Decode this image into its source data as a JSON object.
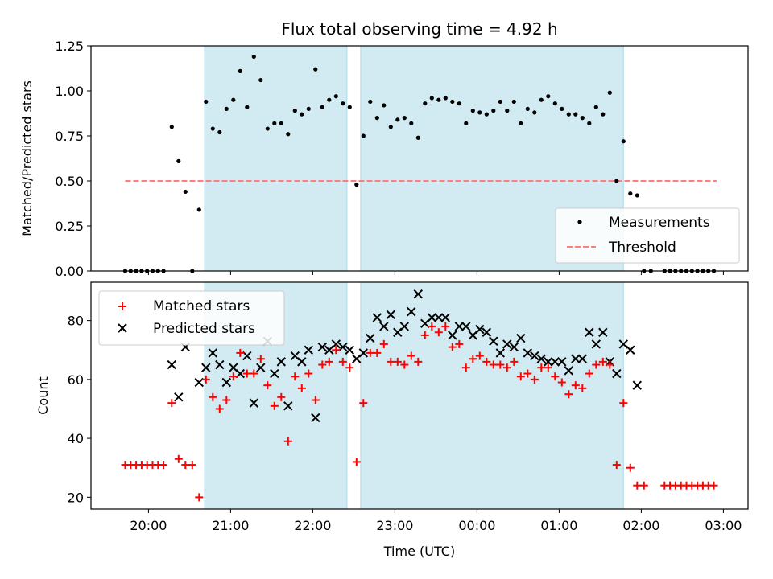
{
  "figure": {
    "title": "Flux total observing time = 4.92 h",
    "xlabel": "Time (UTC)",
    "colors": {
      "band": "#add8e6",
      "measurement": "#000000",
      "threshold": "#ff7f7f",
      "matched": "#ff0000",
      "predicted": "#000000"
    }
  },
  "chart_data": [
    {
      "type": "scatter",
      "ylabel": "Matched/Predicted stars",
      "ylim": [
        0,
        1.25
      ],
      "yticks": [
        "0.00",
        "0.25",
        "0.50",
        "0.75",
        "1.00",
        "1.25"
      ],
      "xlim_hours": [
        19.3,
        27.3
      ],
      "legend_position": "lower-right",
      "shaded_intervals": [
        [
          "20:41",
          "22:25"
        ],
        [
          "22:35",
          "01:47"
        ]
      ],
      "threshold": {
        "name": "Threshold",
        "value": 0.5,
        "x_range": [
          "19:43",
          "02:55"
        ]
      },
      "series": [
        {
          "name": "Measurements",
          "points": [
            [
              "19:43",
              0
            ],
            [
              "19:47",
              0
            ],
            [
              "19:51",
              0
            ],
            [
              "19:55",
              0
            ],
            [
              "19:59",
              0
            ],
            [
              "20:03",
              0
            ],
            [
              "20:07",
              0
            ],
            [
              "20:11",
              0
            ],
            [
              "20:17",
              0.8
            ],
            [
              "20:22",
              0.61
            ],
            [
              "20:27",
              0.44
            ],
            [
              "20:32",
              0
            ],
            [
              "20:37",
              0.34
            ],
            [
              "20:42",
              0.94
            ],
            [
              "20:47",
              0.79
            ],
            [
              "20:52",
              0.77
            ],
            [
              "20:57",
              0.9
            ],
            [
              "21:02",
              0.95
            ],
            [
              "21:07",
              1.11
            ],
            [
              "21:12",
              0.91
            ],
            [
              "21:17",
              1.19
            ],
            [
              "21:22",
              1.06
            ],
            [
              "21:27",
              0.79
            ],
            [
              "21:32",
              0.82
            ],
            [
              "21:37",
              0.82
            ],
            [
              "21:42",
              0.76
            ],
            [
              "21:47",
              0.89
            ],
            [
              "21:52",
              0.87
            ],
            [
              "21:57",
              0.9
            ],
            [
              "22:02",
              1.12
            ],
            [
              "22:07",
              0.91
            ],
            [
              "22:12",
              0.95
            ],
            [
              "22:17",
              0.97
            ],
            [
              "22:22",
              0.93
            ],
            [
              "22:27",
              0.91
            ],
            [
              "22:32",
              0.48
            ],
            [
              "22:37",
              0.75
            ],
            [
              "22:42",
              0.94
            ],
            [
              "22:47",
              0.85
            ],
            [
              "22:52",
              0.92
            ],
            [
              "22:57",
              0.8
            ],
            [
              "23:02",
              0.84
            ],
            [
              "23:07",
              0.85
            ],
            [
              "23:12",
              0.82
            ],
            [
              "23:17",
              0.74
            ],
            [
              "23:22",
              0.93
            ],
            [
              "23:27",
              0.96
            ],
            [
              "23:32",
              0.95
            ],
            [
              "23:37",
              0.96
            ],
            [
              "23:42",
              0.94
            ],
            [
              "23:47",
              0.93
            ],
            [
              "23:52",
              0.82
            ],
            [
              "23:57",
              0.89
            ],
            [
              "00:02",
              0.88
            ],
            [
              "00:07",
              0.87
            ],
            [
              "00:12",
              0.89
            ],
            [
              "00:17",
              0.94
            ],
            [
              "00:22",
              0.89
            ],
            [
              "00:27",
              0.94
            ],
            [
              "00:32",
              0.82
            ],
            [
              "00:37",
              0.9
            ],
            [
              "00:42",
              0.88
            ],
            [
              "00:47",
              0.95
            ],
            [
              "00:52",
              0.97
            ],
            [
              "00:57",
              0.93
            ],
            [
              "01:02",
              0.9
            ],
            [
              "01:07",
              0.87
            ],
            [
              "01:12",
              0.87
            ],
            [
              "01:17",
              0.85
            ],
            [
              "01:22",
              0.82
            ],
            [
              "01:27",
              0.91
            ],
            [
              "01:32",
              0.87
            ],
            [
              "01:37",
              0.99
            ],
            [
              "01:42",
              0.5
            ],
            [
              "01:47",
              0.72
            ],
            [
              "01:52",
              0.43
            ],
            [
              "01:57",
              0.42
            ],
            [
              "02:02",
              0
            ],
            [
              "02:07",
              0
            ],
            [
              "02:17",
              0
            ],
            [
              "02:21",
              0
            ],
            [
              "02:25",
              0
            ],
            [
              "02:29",
              0
            ],
            [
              "02:33",
              0
            ],
            [
              "02:37",
              0
            ],
            [
              "02:41",
              0
            ],
            [
              "02:45",
              0
            ],
            [
              "02:49",
              0
            ],
            [
              "02:53",
              0
            ]
          ]
        }
      ]
    },
    {
      "type": "scatter",
      "ylabel": "Count",
      "ylim": [
        16,
        93
      ],
      "yticks": [
        "20",
        "40",
        "60",
        "80"
      ],
      "xlim_hours": [
        19.3,
        27.3
      ],
      "xticks": [
        "20:00",
        "21:00",
        "22:00",
        "23:00",
        "00:00",
        "01:00",
        "02:00",
        "03:00"
      ],
      "legend_position": "upper-left",
      "shaded_intervals": [
        [
          "20:41",
          "22:25"
        ],
        [
          "22:35",
          "01:47"
        ]
      ],
      "series": [
        {
          "name": "Matched stars",
          "marker": "plus",
          "points": [
            [
              "19:43",
              31
            ],
            [
              "19:47",
              31
            ],
            [
              "19:51",
              31
            ],
            [
              "19:55",
              31
            ],
            [
              "19:59",
              31
            ],
            [
              "20:03",
              31
            ],
            [
              "20:07",
              31
            ],
            [
              "20:11",
              31
            ],
            [
              "20:17",
              52
            ],
            [
              "20:22",
              33
            ],
            [
              "20:27",
              31
            ],
            [
              "20:32",
              31
            ],
            [
              "20:37",
              20
            ],
            [
              "20:42",
              60
            ],
            [
              "20:47",
              54
            ],
            [
              "20:52",
              50
            ],
            [
              "20:57",
              53
            ],
            [
              "21:02",
              61
            ],
            [
              "21:07",
              69
            ],
            [
              "21:12",
              62
            ],
            [
              "21:17",
              62
            ],
            [
              "21:22",
              67
            ],
            [
              "21:27",
              58
            ],
            [
              "21:32",
              51
            ],
            [
              "21:37",
              54
            ],
            [
              "21:42",
              39
            ],
            [
              "21:47",
              61
            ],
            [
              "21:52",
              57
            ],
            [
              "21:57",
              62
            ],
            [
              "22:02",
              53
            ],
            [
              "22:07",
              65
            ],
            [
              "22:12",
              66
            ],
            [
              "22:17",
              70
            ],
            [
              "22:22",
              66
            ],
            [
              "22:27",
              64
            ],
            [
              "22:32",
              32
            ],
            [
              "22:37",
              52
            ],
            [
              "22:42",
              69
            ],
            [
              "22:47",
              69
            ],
            [
              "22:52",
              72
            ],
            [
              "22:57",
              66
            ],
            [
              "23:02",
              66
            ],
            [
              "23:07",
              65
            ],
            [
              "23:12",
              68
            ],
            [
              "23:17",
              66
            ],
            [
              "23:22",
              75
            ],
            [
              "23:27",
              78
            ],
            [
              "23:32",
              76
            ],
            [
              "23:37",
              78
            ],
            [
              "23:42",
              71
            ],
            [
              "23:47",
              72
            ],
            [
              "23:52",
              64
            ],
            [
              "23:57",
              67
            ],
            [
              "00:02",
              68
            ],
            [
              "00:07",
              66
            ],
            [
              "00:12",
              65
            ],
            [
              "00:17",
              65
            ],
            [
              "00:22",
              64
            ],
            [
              "00:27",
              66
            ],
            [
              "00:32",
              61
            ],
            [
              "00:37",
              62
            ],
            [
              "00:42",
              60
            ],
            [
              "00:47",
              64
            ],
            [
              "00:52",
              64
            ],
            [
              "00:57",
              61
            ],
            [
              "01:02",
              59
            ],
            [
              "01:07",
              55
            ],
            [
              "01:12",
              58
            ],
            [
              "01:17",
              57
            ],
            [
              "01:22",
              62
            ],
            [
              "01:27",
              65
            ],
            [
              "01:32",
              66
            ],
            [
              "01:37",
              65
            ],
            [
              "01:42",
              31
            ],
            [
              "01:47",
              52
            ],
            [
              "01:52",
              30
            ],
            [
              "01:57",
              24
            ],
            [
              "02:02",
              24
            ],
            [
              "02:17",
              24
            ],
            [
              "02:21",
              24
            ],
            [
              "02:25",
              24
            ],
            [
              "02:29",
              24
            ],
            [
              "02:33",
              24
            ],
            [
              "02:37",
              24
            ],
            [
              "02:41",
              24
            ],
            [
              "02:45",
              24
            ],
            [
              "02:49",
              24
            ],
            [
              "02:53",
              24
            ]
          ]
        },
        {
          "name": "Predicted stars",
          "marker": "x",
          "points": [
            [
              "20:17",
              65
            ],
            [
              "20:22",
              54
            ],
            [
              "20:27",
              71
            ],
            [
              "20:37",
              59
            ],
            [
              "20:42",
              64
            ],
            [
              "20:47",
              69
            ],
            [
              "20:52",
              65
            ],
            [
              "20:57",
              59
            ],
            [
              "21:02",
              64
            ],
            [
              "21:07",
              62
            ],
            [
              "21:12",
              68
            ],
            [
              "21:17",
              52
            ],
            [
              "21:22",
              64
            ],
            [
              "21:27",
              73
            ],
            [
              "21:32",
              62
            ],
            [
              "21:37",
              66
            ],
            [
              "21:42",
              51
            ],
            [
              "21:47",
              68
            ],
            [
              "21:52",
              66
            ],
            [
              "21:57",
              70
            ],
            [
              "22:02",
              47
            ],
            [
              "22:07",
              71
            ],
            [
              "22:12",
              70
            ],
            [
              "22:17",
              72
            ],
            [
              "22:22",
              71
            ],
            [
              "22:27",
              70
            ],
            [
              "22:32",
              67
            ],
            [
              "22:37",
              69
            ],
            [
              "22:42",
              74
            ],
            [
              "22:47",
              81
            ],
            [
              "22:52",
              78
            ],
            [
              "22:57",
              82
            ],
            [
              "23:02",
              76
            ],
            [
              "23:07",
              78
            ],
            [
              "23:12",
              83
            ],
            [
              "23:17",
              89
            ],
            [
              "23:22",
              79
            ],
            [
              "23:27",
              81
            ],
            [
              "23:32",
              81
            ],
            [
              "23:37",
              81
            ],
            [
              "23:42",
              75
            ],
            [
              "23:47",
              78
            ],
            [
              "23:52",
              78
            ],
            [
              "23:57",
              75
            ],
            [
              "00:02",
              77
            ],
            [
              "00:07",
              76
            ],
            [
              "00:12",
              73
            ],
            [
              "00:17",
              69
            ],
            [
              "00:22",
              72
            ],
            [
              "00:27",
              71
            ],
            [
              "00:32",
              74
            ],
            [
              "00:37",
              69
            ],
            [
              "00:42",
              68
            ],
            [
              "00:47",
              67
            ],
            [
              "00:52",
              66
            ],
            [
              "00:57",
              66
            ],
            [
              "01:02",
              66
            ],
            [
              "01:07",
              63
            ],
            [
              "01:12",
              67
            ],
            [
              "01:17",
              67
            ],
            [
              "01:22",
              76
            ],
            [
              "01:27",
              72
            ],
            [
              "01:32",
              76
            ],
            [
              "01:37",
              66
            ],
            [
              "01:42",
              62
            ],
            [
              "01:47",
              72
            ],
            [
              "01:52",
              70
            ],
            [
              "01:57",
              58
            ]
          ]
        }
      ]
    }
  ]
}
